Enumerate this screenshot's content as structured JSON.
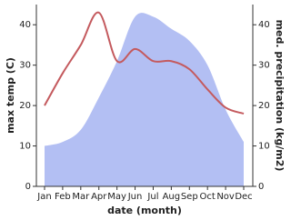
{
  "chart_data": {
    "type": "line",
    "categories": [
      "Jan",
      "Feb",
      "Mar",
      "Apr",
      "May",
      "Jun",
      "Jul",
      "Aug",
      "Sep",
      "Oct",
      "Nov",
      "Dec"
    ],
    "x_label": "date (month)",
    "y_label": "max temp (C)",
    "y2_label": "med. precipitation (kg/m2)",
    "ylim": [
      0,
      45
    ],
    "yticks": [
      0,
      10,
      20,
      30,
      40
    ],
    "y2lim": [
      0,
      45
    ],
    "y2ticks": [
      0,
      10,
      20,
      30,
      40
    ],
    "series": [
      {
        "name": "max temp",
        "color": "#c45a5e",
        "values": [
          20,
          28,
          35,
          43,
          31,
          34,
          31,
          31,
          29,
          24,
          19.5,
          18
        ]
      },
      {
        "name": "med. precipitation",
        "color": "#b3bff3",
        "axis": "y2",
        "values": [
          10,
          11,
          14,
          22,
          31,
          42,
          42,
          39,
          36,
          30,
          19,
          11
        ]
      }
    ]
  }
}
